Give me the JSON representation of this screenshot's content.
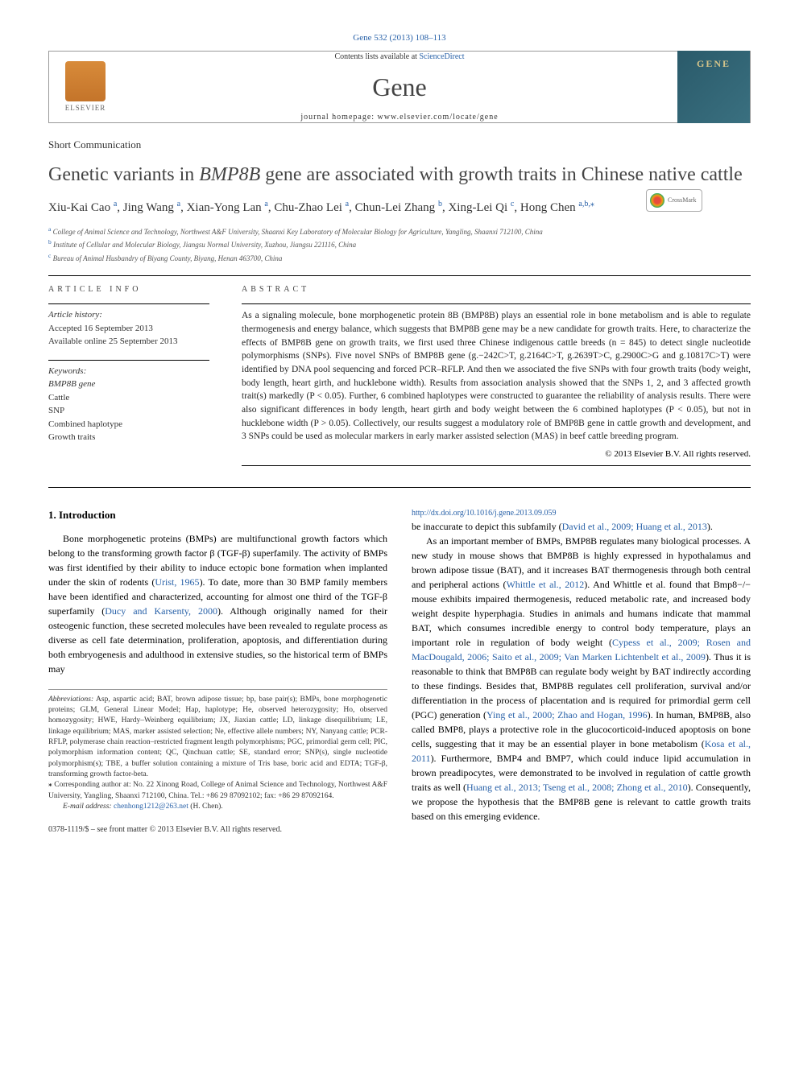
{
  "header": {
    "citation": "Gene 532 (2013) 108–113",
    "contents_text": "Contents lists available at ",
    "contents_link": "ScienceDirect",
    "journal_name": "Gene",
    "homepage_label": "journal homepage: ",
    "homepage_url": "www.elsevier.com/locate/gene",
    "elsevier_label": "ELSEVIER",
    "gene_logo_text": "GENE"
  },
  "article": {
    "section_label": "Short Communication",
    "title_prefix": "Genetic variants in ",
    "title_gene": "BMP8B",
    "title_suffix": " gene are associated with growth traits in Chinese native cattle",
    "crossmark_label": "CrossMark"
  },
  "authors": {
    "list": "Xiu-Kai Cao ",
    "a1_sup": "a",
    "a2": ", Jing Wang ",
    "a2_sup": "a",
    "a3": ", Xian-Yong Lan ",
    "a3_sup": "a",
    "a4": ", Chu-Zhao Lei ",
    "a4_sup": "a",
    "a5": ", Chun-Lei Zhang ",
    "a5_sup": "b",
    "a6": ", Xing-Lei Qi ",
    "a6_sup": "c",
    "a7": ", Hong Chen ",
    "a7_sup": "a,b,",
    "star": "⁎"
  },
  "affiliations": {
    "a": "College of Animal Science and Technology, Northwest A&F University, Shaanxi Key Laboratory of Molecular Biology for Agriculture, Yangling, Shaanxi 712100, China",
    "b": "Institute of Cellular and Molecular Biology, Jiangsu Normal University, Xuzhou, Jiangsu 221116, China",
    "c": "Bureau of Animal Husbandry of Biyang County, Biyang, Henan 463700, China"
  },
  "info": {
    "heading": "ARTICLE INFO",
    "history_label": "Article history:",
    "accepted": "Accepted 16 September 2013",
    "online": "Available online 25 September 2013",
    "keywords_label": "Keywords:",
    "keywords": [
      "BMP8B gene",
      "Cattle",
      "SNP",
      "Combined haplotype",
      "Growth traits"
    ]
  },
  "abstract": {
    "heading": "ABSTRACT",
    "text": "As a signaling molecule, bone morphogenetic protein 8B (BMP8B) plays an essential role in bone metabolism and is able to regulate thermogenesis and energy balance, which suggests that BMP8B gene may be a new candidate for growth traits. Here, to characterize the effects of BMP8B gene on growth traits, we first used three Chinese indigenous cattle breeds (n = 845) to detect single nucleotide polymorphisms (SNPs). Five novel SNPs of BMP8B gene (g.−242C>T, g.2164C>T, g.2639T>C, g.2900C>G and g.10817C>T) were identified by DNA pool sequencing and forced PCR–RFLP. And then we associated the five SNPs with four growth traits (body weight, body length, heart girth, and hucklebone width). Results from association analysis showed that the SNPs 1, 2, and 3 affected growth trait(s) markedly (P < 0.05). Further, 6 combined haplotypes were constructed to guarantee the reliability of analysis results. There were also significant differences in body length, heart girth and body weight between the 6 combined haplotypes (P < 0.05), but not in hucklebone width (P > 0.05). Collectively, our results suggest a modulatory role of BMP8B gene in cattle growth and development, and 3 SNPs could be used as molecular markers in early marker assisted selection (MAS) in beef cattle breeding program.",
    "copyright": "© 2013 Elsevier B.V. All rights reserved."
  },
  "body": {
    "intro_heading": "1. Introduction",
    "p1_a": "Bone morphogenetic proteins (BMPs) are multifunctional growth factors which belong to the transforming growth factor β (TGF-β) superfamily. The activity of BMPs was first identified by their ability to induce ectopic bone formation when implanted under the skin of rodents (",
    "p1_link1": "Urist, 1965",
    "p1_b": "). To date, more than 30 BMP family members have been identified and characterized, accounting for almost one third of the TGF-β superfamily (",
    "p1_link2": "Ducy and Karsenty, 2000",
    "p1_c": "). Although originally named for their osteogenic function, these secreted molecules have been revealed to regulate process as diverse as cell fate determination, proliferation, apoptosis, and differentiation during both embryogenesis and adulthood in extensive studies, so the historical term of BMPs may",
    "p1_d": "be inaccurate to depict this subfamily (",
    "p1_link3": "David et al., 2009; Huang et al., 2013",
    "p1_e": ").",
    "p2_a": "As an important member of BMPs, BMP8B regulates many biological processes. A new study in mouse shows that BMP8B is highly expressed in hypothalamus and brown adipose tissue (BAT), and it increases BAT thermogenesis through both central and peripheral actions (",
    "p2_link1": "Whittle et al., 2012",
    "p2_b": "). And Whittle et al. found that Bmp8−/− mouse exhibits impaired thermogenesis, reduced metabolic rate, and increased body weight despite hyperphagia. Studies in animals and humans indicate that mammal BAT, which consumes incredible energy to control body temperature, plays an important role in regulation of body weight (",
    "p2_link2": "Cypess et al., 2009; Rosen and MacDougald, 2006; Saito et al., 2009; Van Marken Lichtenbelt et al., 2009",
    "p2_c": "). Thus it is reasonable to think that BMP8B can regulate body weight by BAT indirectly according to these findings. Besides that, BMP8B regulates cell proliferation, survival and/or differentiation in the process of placentation and is required for primordial germ cell (PGC) generation (",
    "p2_link3": "Ying et al., 2000; Zhao and Hogan, 1996",
    "p2_d": "). In human, BMP8B, also called BMP8, plays a protective role in the glucocorticoid-induced apoptosis on bone cells, suggesting that it may be an essential player in bone metabolism (",
    "p2_link4": "Kosa et al., 2011",
    "p2_e": "). Furthermore, BMP4 and BMP7, which could induce lipid accumulation in brown preadipocytes, were demonstrated to be involved in regulation of cattle growth traits as well (",
    "p2_link5": "Huang et al., 2013; Tseng et al., 2008; Zhong et al., 2010",
    "p2_f": "). Consequently, we propose the hypothesis that the BMP8B gene is relevant to cattle growth traits based on this emerging evidence."
  },
  "footnotes": {
    "abbrev_label": "Abbreviations:",
    "abbrev_text": " Asp, aspartic acid; BAT, brown adipose tissue; bp, base pair(s); BMPs, bone morphogenetic proteins; GLM, General Linear Model; Hap, haplotype; He, observed heterozygosity; Ho, observed homozygosity; HWE, Hardy–Weinberg equilibrium; JX, Jiaxian cattle; LD, linkage disequilibrium; LE, linkage equilibrium; MAS, marker assisted selection; Ne, effective allele numbers; NY, Nanyang cattle; PCR-RFLP, polymerase chain reaction–restricted fragment length polymorphisms; PGC, primordial germ cell; PIC, polymorphism information content; QC, Qinchuan cattle; SE, standard error; SNP(s), single nucleotide polymorphism(s); TBE, a buffer solution containing a mixture of Tris base, boric acid and EDTA; TGF-β, transforming growth factor-beta.",
    "corr_label": "⁎",
    "corr_text": " Corresponding author at: No. 22 Xinong Road, College of Animal Science and Technology, Northwest A&F University, Yangling, Shaanxi 712100, China. Tel.: +86 29 87092102; fax: +86 29 87092164.",
    "email_label": "E-mail address:",
    "email": " chenhong1212@263.net",
    "email_suffix": " (H. Chen)."
  },
  "footer": {
    "line1": "0378-1119/$ – see front matter © 2013 Elsevier B.V. All rights reserved.",
    "doi": "http://dx.doi.org/10.1016/j.gene.2013.09.059"
  },
  "style": {
    "link_color": "#2861a8",
    "text_color": "#000000",
    "body_fontsize": 12,
    "abstract_fontsize": 11.5,
    "title_fontsize": 24,
    "journal_fontsize": 32
  }
}
